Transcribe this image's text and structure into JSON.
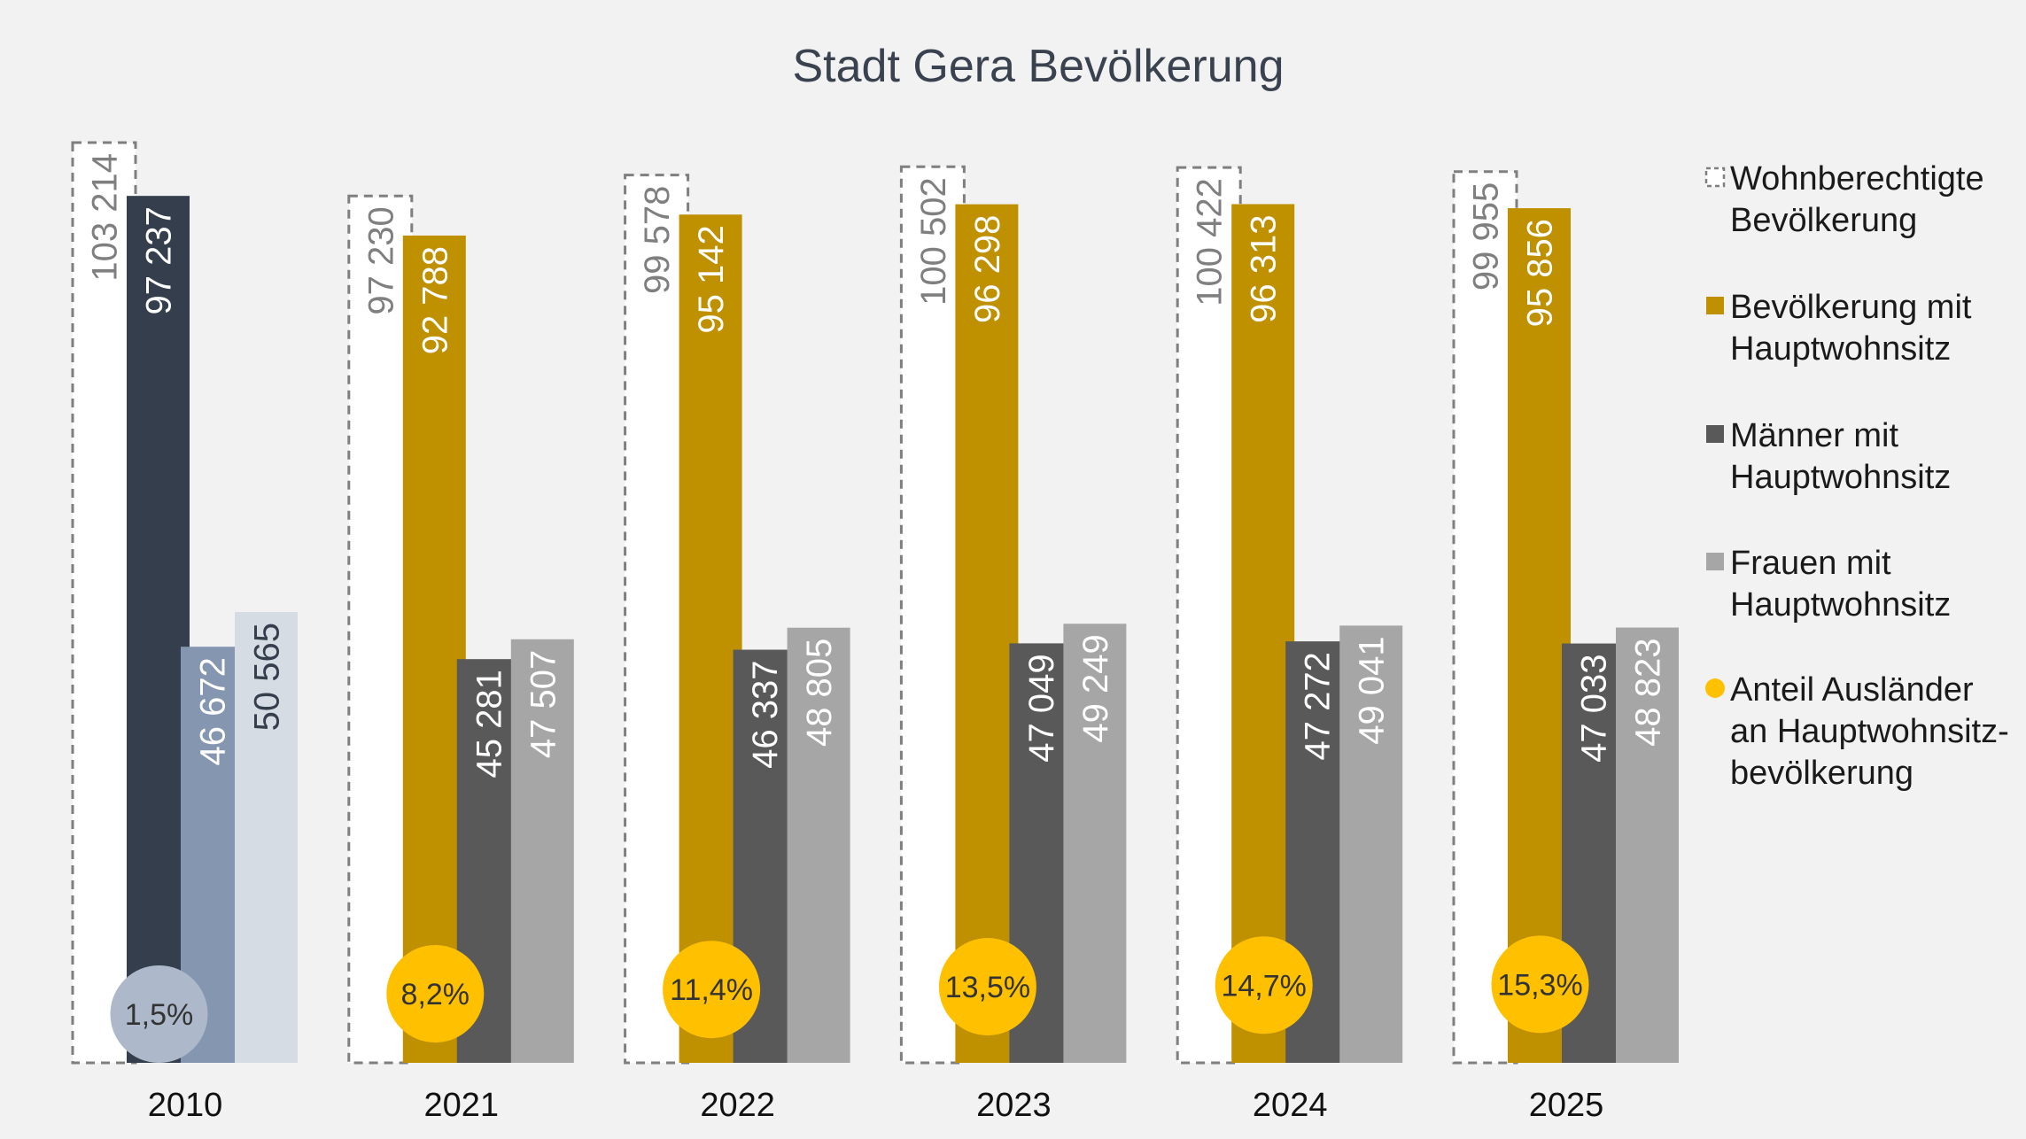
{
  "chart_data": {
    "type": "bar",
    "title": "Stadt Gera Bevölkerung",
    "categories": [
      "2010",
      "2021",
      "2022",
      "2023",
      "2024",
      "2025"
    ],
    "ylim": [
      0,
      103214
    ],
    "grid": false,
    "legend_position": "right",
    "series": [
      {
        "name": "Wohnberechtigte Bevölkerung",
        "legend_lines": [
          "Wohnberechtigte",
          "Bevölkerung"
        ],
        "values": [
          103214,
          97230,
          99578,
          100502,
          100422,
          99955
        ],
        "labels": [
          "103 214",
          "97 230",
          "99 578",
          "100 502",
          "100 422",
          "99 955"
        ],
        "color": "#ffffff",
        "stroke": "#7f7f7f",
        "dashed": true
      },
      {
        "name": "Bevölkerung mit Hauptwohnsitz",
        "legend_lines": [
          "Bevölkerung mit",
          "Hauptwohnsitz"
        ],
        "values": [
          97237,
          92788,
          95142,
          96298,
          96313,
          95856
        ],
        "labels": [
          "97 237",
          "92 788",
          "95 142",
          "96 298",
          "96 313",
          "95 856"
        ],
        "color": "#bf9000",
        "colors_by_category": [
          "#343e4d",
          "#bf9000",
          "#bf9000",
          "#bf9000",
          "#bf9000",
          "#bf9000"
        ]
      },
      {
        "name": "Männer mit Hauptwohnsitz",
        "legend_lines": [
          "Männer mit",
          "Hauptwohnsitz"
        ],
        "values": [
          46672,
          45281,
          46337,
          47049,
          47272,
          47033
        ],
        "labels": [
          "46 672",
          "45 281",
          "46 337",
          "47 049",
          "47 272",
          "47 033"
        ],
        "color": "#595959",
        "colors_by_category": [
          "#8496b0",
          "#595959",
          "#595959",
          "#595959",
          "#595959",
          "#595959"
        ]
      },
      {
        "name": "Frauen mit Hauptwohnsitz",
        "legend_lines": [
          "Frauen mit",
          "Hauptwohnsitz"
        ],
        "values": [
          50565,
          47507,
          48805,
          49249,
          49041,
          48823
        ],
        "labels": [
          "50 565",
          "47 507",
          "48 805",
          "49 249",
          "49 041",
          "48 823"
        ],
        "color": "#a6a6a6",
        "colors_by_category": [
          "#d6dce4",
          "#a6a6a6",
          "#a6a6a6",
          "#a6a6a6",
          "#a6a6a6",
          "#a6a6a6"
        ]
      },
      {
        "name": "Anteil Ausländer an Hauptwohnsitzbevölkerung",
        "legend_lines": [
          "Anteil Ausländer",
          "an Hauptwohnsitz-",
          "bevölkerung"
        ],
        "type": "scatter",
        "values": [
          1.5,
          8.2,
          11.4,
          13.5,
          14.7,
          15.3
        ],
        "labels": [
          "1,5%",
          "8,2%",
          "11,4%",
          "13,5%",
          "14,7%",
          "15,3%"
        ],
        "color": "#ffc000",
        "colors_by_category": [
          "#adb9ca",
          "#ffc000",
          "#ffc000",
          "#ffc000",
          "#ffc000",
          "#ffc000"
        ]
      }
    ]
  }
}
